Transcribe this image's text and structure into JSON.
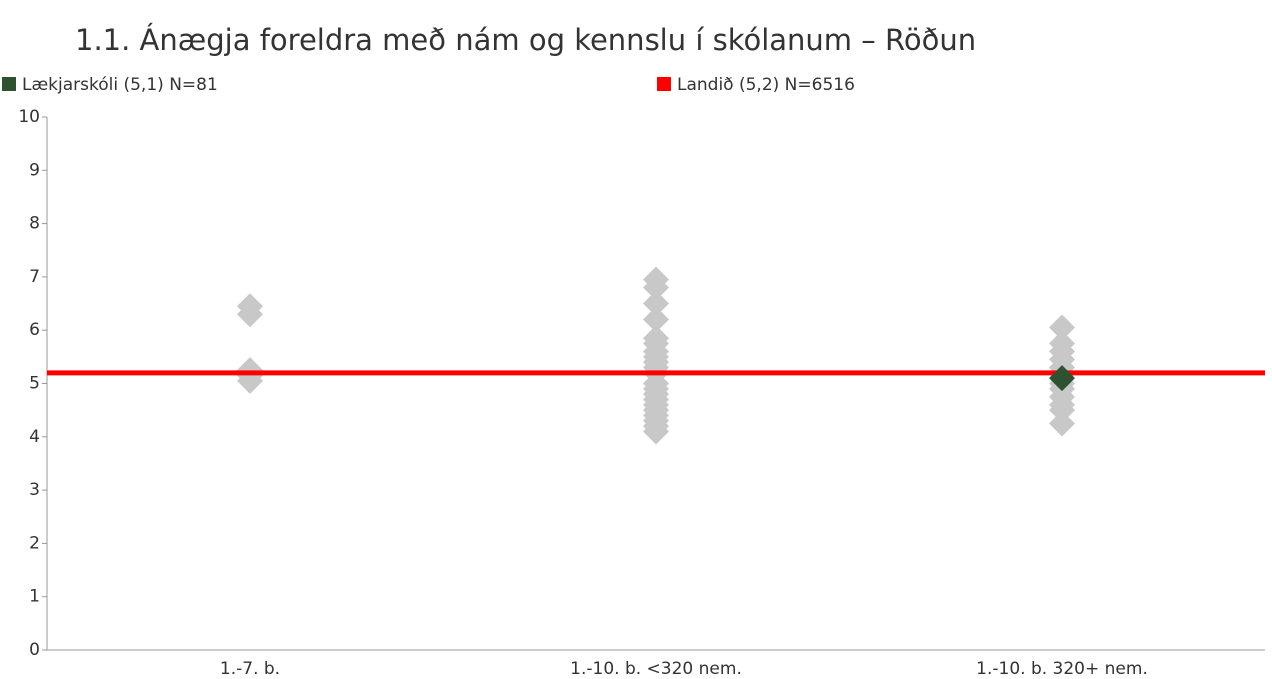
{
  "chart_data": {
    "type": "scatter",
    "title": "1.1. Ánægja foreldra með nám og kennslu í skólanum – Röðun",
    "categories": [
      "1.-7. b.",
      "1.-10. b. <320 nem.",
      "1.-10. b. 320+ nem."
    ],
    "ylim": [
      0,
      10
    ],
    "yticks": [
      0,
      1,
      2,
      3,
      4,
      5,
      6,
      7,
      8,
      9,
      10
    ],
    "others": {
      "color": "#c8c8c8",
      "values": [
        [
          6.45,
          6.3,
          5.25,
          5.15,
          5.05
        ],
        [
          6.95,
          6.8,
          6.5,
          6.2,
          5.85,
          5.75,
          5.6,
          5.5,
          5.4,
          5.3,
          5.2,
          5.0,
          4.9,
          4.8,
          4.7,
          4.6,
          4.5,
          4.4,
          4.3,
          4.2,
          4.1
        ],
        [
          6.05,
          5.75,
          5.6,
          5.45,
          5.3,
          5.2,
          5.0,
          4.9,
          4.75,
          4.6,
          4.5,
          4.25
        ]
      ]
    },
    "series": [
      {
        "name": "Lækjarskóli (5,1) N=81",
        "color": "#2e5230",
        "values": [
          null,
          null,
          5.1
        ]
      },
      {
        "name": "Landið (5,2) N=6516",
        "color": "#ff0000",
        "kind": "hline",
        "value": 5.2
      }
    ]
  }
}
